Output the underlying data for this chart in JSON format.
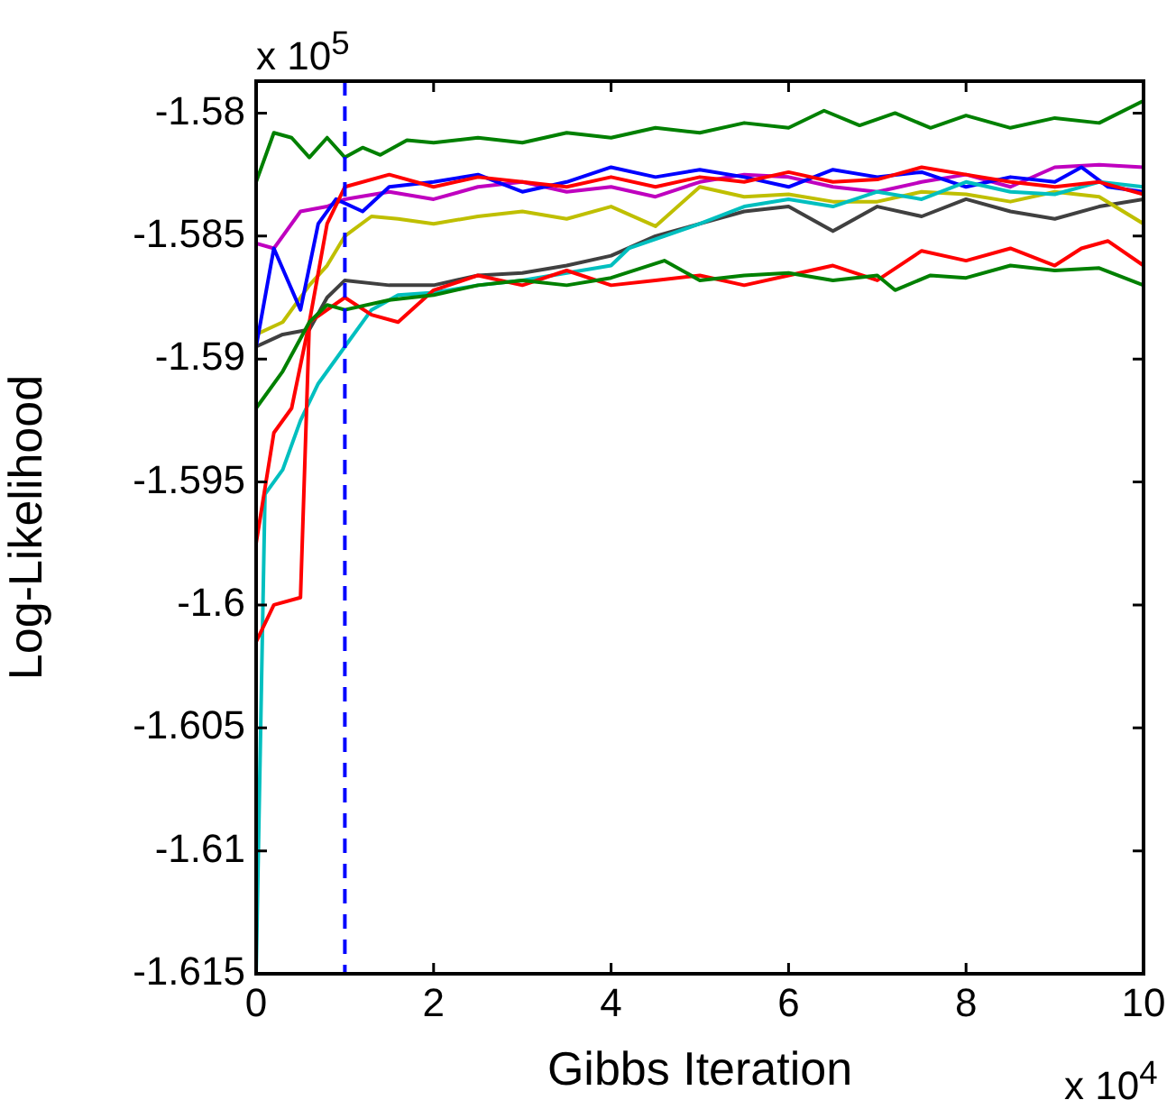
{
  "chart_data": {
    "type": "line",
    "xlabel": "Gibbs Iteration",
    "ylabel": "Log-Likelihood",
    "annotations": [
      "x 10$^{5}$",
      "x 10$^{4}$"
    ],
    "xlim": [
      0,
      10
    ],
    "xticks": [
      0,
      2,
      4,
      6,
      8,
      10
    ],
    "ylim": [
      -1.615,
      -1.5787
    ],
    "yticks": [
      -1.615,
      -1.61,
      -1.605,
      -1.6,
      -1.595,
      -1.59,
      -1.585,
      -1.58
    ],
    "grid": false,
    "legend": false,
    "marker": "none",
    "line_style": "solid",
    "ref_lines": [
      {
        "axis": "x",
        "value": 1,
        "color": "#0000ff",
        "line_style": "dashed"
      }
    ],
    "series": [
      {
        "color": "#008000",
        "x": [
          0,
          0.2,
          0.4,
          0.6,
          0.8,
          1,
          1.2,
          1.4,
          1.7,
          2,
          2.5,
          3,
          3.5,
          4,
          4.5,
          5,
          5.5,
          6,
          6.4,
          6.8,
          7.2,
          7.6,
          8,
          8.5,
          9,
          9.5,
          10
        ],
        "values": [
          -1.5828,
          -1.5808,
          -1.581,
          -1.5818,
          -1.581,
          -1.5818,
          -1.5814,
          -1.5817,
          -1.5811,
          -1.5812,
          -1.581,
          -1.5812,
          -1.5808,
          -1.581,
          -1.5806,
          -1.5808,
          -1.5804,
          -1.5806,
          -1.5799,
          -1.5805,
          -1.58,
          -1.5806,
          -1.5801,
          -1.5806,
          -1.5802,
          -1.5804,
          -1.5795
        ]
      },
      {
        "color": "#008000",
        "x": [
          0,
          0.3,
          0.6,
          0.8,
          1,
          1.5,
          2,
          2.5,
          3,
          3.5,
          4,
          4.6,
          5,
          5.5,
          6,
          6.5,
          7,
          7.2,
          7.6,
          8,
          8.5,
          9,
          9.5,
          10
        ],
        "values": [
          -1.592,
          -1.5905,
          -1.5885,
          -1.5878,
          -1.588,
          -1.5876,
          -1.5874,
          -1.587,
          -1.5868,
          -1.587,
          -1.5867,
          -1.586,
          -1.5868,
          -1.5866,
          -1.5865,
          -1.5868,
          -1.5866,
          -1.5872,
          -1.5866,
          -1.5867,
          -1.5862,
          -1.5864,
          -1.5863,
          -1.587
        ]
      },
      {
        "color": "#ff0000",
        "x": [
          0,
          0.2,
          0.5,
          0.6,
          0.8,
          1,
          1.3,
          1.6,
          2,
          2.5,
          3,
          3.5,
          4,
          4.5,
          5,
          5.5,
          6,
          6.5,
          7,
          7.5,
          8,
          8.5,
          9,
          9.3,
          9.6,
          10
        ],
        "values": [
          -1.6015,
          -1.6,
          -1.5997,
          -1.5885,
          -1.588,
          -1.5875,
          -1.5882,
          -1.5885,
          -1.5872,
          -1.5866,
          -1.587,
          -1.5864,
          -1.587,
          -1.5868,
          -1.5866,
          -1.587,
          -1.5866,
          -1.5862,
          -1.5868,
          -1.5856,
          -1.586,
          -1.5855,
          -1.5862,
          -1.5855,
          -1.5852,
          -1.5862
        ]
      },
      {
        "color": "#ff0000",
        "x": [
          0,
          0.2,
          0.4,
          0.6,
          0.8,
          1,
          1.5,
          2,
          2.5,
          3,
          3.5,
          4,
          4.5,
          5,
          5.5,
          6,
          6.5,
          7,
          7.5,
          8,
          8.5,
          9,
          9.5,
          10
        ],
        "values": [
          -1.5975,
          -1.593,
          -1.592,
          -1.5885,
          -1.5845,
          -1.583,
          -1.5825,
          -1.583,
          -1.5826,
          -1.5828,
          -1.583,
          -1.5826,
          -1.583,
          -1.5826,
          -1.5828,
          -1.5824,
          -1.5828,
          -1.5827,
          -1.5822,
          -1.5825,
          -1.5828,
          -1.583,
          -1.5828,
          -1.5833
        ]
      },
      {
        "color": "#00bfbf",
        "x": [
          0,
          0.1,
          0.3,
          0.5,
          0.7,
          1,
          1.3,
          1.6,
          2,
          2.5,
          3,
          3.5,
          4,
          4.2,
          4.6,
          5,
          5.5,
          6,
          6.5,
          7,
          7.5,
          8,
          8.5,
          9,
          9.5,
          10
        ],
        "values": [
          -1.615,
          -1.5955,
          -1.5945,
          -1.5925,
          -1.591,
          -1.5895,
          -1.588,
          -1.5874,
          -1.5873,
          -1.587,
          -1.5868,
          -1.5865,
          -1.5862,
          -1.5855,
          -1.585,
          -1.5845,
          -1.5838,
          -1.5835,
          -1.5838,
          -1.5832,
          -1.5835,
          -1.5828,
          -1.5832,
          -1.5833,
          -1.5828,
          -1.583
        ]
      },
      {
        "color": "#0000ff",
        "x": [
          0,
          0.2,
          0.5,
          0.7,
          0.9,
          1.2,
          1.5,
          2,
          2.5,
          3,
          3.5,
          4,
          4.5,
          5,
          5.5,
          6,
          6.5,
          7,
          7.5,
          8,
          8.5,
          9,
          9.3,
          9.6,
          10
        ],
        "values": [
          -1.5895,
          -1.5855,
          -1.588,
          -1.5845,
          -1.5835,
          -1.584,
          -1.583,
          -1.5828,
          -1.5825,
          -1.5832,
          -1.5828,
          -1.5822,
          -1.5826,
          -1.5823,
          -1.5826,
          -1.583,
          -1.5823,
          -1.5826,
          -1.5824,
          -1.583,
          -1.5826,
          -1.5828,
          -1.5822,
          -1.583,
          -1.5832
        ]
      },
      {
        "color": "#bf00bf",
        "x": [
          0,
          0.2,
          0.5,
          0.8,
          1,
          1.5,
          2,
          2.5,
          3,
          3.5,
          4,
          4.5,
          5,
          5.5,
          6,
          6.5,
          7,
          7.5,
          8,
          8.5,
          9,
          9.5,
          10
        ],
        "values": [
          -1.5853,
          -1.5855,
          -1.584,
          -1.5838,
          -1.5835,
          -1.5832,
          -1.5835,
          -1.583,
          -1.5828,
          -1.5832,
          -1.583,
          -1.5834,
          -1.5828,
          -1.5825,
          -1.5826,
          -1.583,
          -1.5832,
          -1.5828,
          -1.5825,
          -1.583,
          -1.5822,
          -1.5821,
          -1.5822
        ]
      },
      {
        "color": "#bfbf00",
        "x": [
          0,
          0.3,
          0.6,
          0.8,
          1,
          1.3,
          1.6,
          2,
          2.5,
          3,
          3.5,
          4,
          4.5,
          5,
          5.5,
          6,
          6.5,
          7,
          7.5,
          8,
          8.5,
          9,
          9.5,
          10
        ],
        "values": [
          -1.589,
          -1.5885,
          -1.587,
          -1.5862,
          -1.585,
          -1.5842,
          -1.5843,
          -1.5845,
          -1.5842,
          -1.584,
          -1.5843,
          -1.5838,
          -1.5846,
          -1.583,
          -1.5834,
          -1.5833,
          -1.5836,
          -1.5836,
          -1.5832,
          -1.5833,
          -1.5836,
          -1.5832,
          -1.5834,
          -1.5845
        ]
      },
      {
        "color": "#404040",
        "x": [
          0,
          0.3,
          0.6,
          0.8,
          1,
          1.5,
          2,
          2.5,
          3,
          3.5,
          4,
          4.5,
          5,
          5.5,
          6,
          6.5,
          7,
          7.5,
          8,
          8.5,
          9,
          9.5,
          10
        ],
        "values": [
          -1.5895,
          -1.589,
          -1.5888,
          -1.5875,
          -1.5868,
          -1.587,
          -1.587,
          -1.5866,
          -1.5865,
          -1.5862,
          -1.5858,
          -1.585,
          -1.5845,
          -1.584,
          -1.5838,
          -1.5848,
          -1.5838,
          -1.5842,
          -1.5835,
          -1.584,
          -1.5843,
          -1.5838,
          -1.5835
        ]
      }
    ]
  }
}
